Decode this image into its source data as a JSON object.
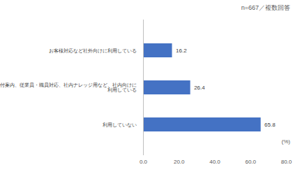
{
  "chart_data": {
    "type": "bar",
    "orientation": "horizontal",
    "subtitle": "n=667／複数回答",
    "x_label": "(%)",
    "categories": [
      "お客様対応など社外向けに利用している",
      "受付案内、従業員・職員対応、社内ナレッジ用など、社内向けに利用している",
      "利用していない"
    ],
    "values": [
      16.2,
      26.4,
      65.8
    ],
    "color": "#4472c4",
    "data_labels": true,
    "grid": false,
    "xlim": [
      0,
      80
    ],
    "xticks": [
      {
        "value": 0,
        "label": "0.0"
      },
      {
        "value": 20,
        "label": "20.0"
      },
      {
        "value": 40,
        "label": "40.0"
      },
      {
        "value": 60,
        "label": "60.0"
      },
      {
        "value": 80,
        "label": "80.0"
      }
    ]
  }
}
